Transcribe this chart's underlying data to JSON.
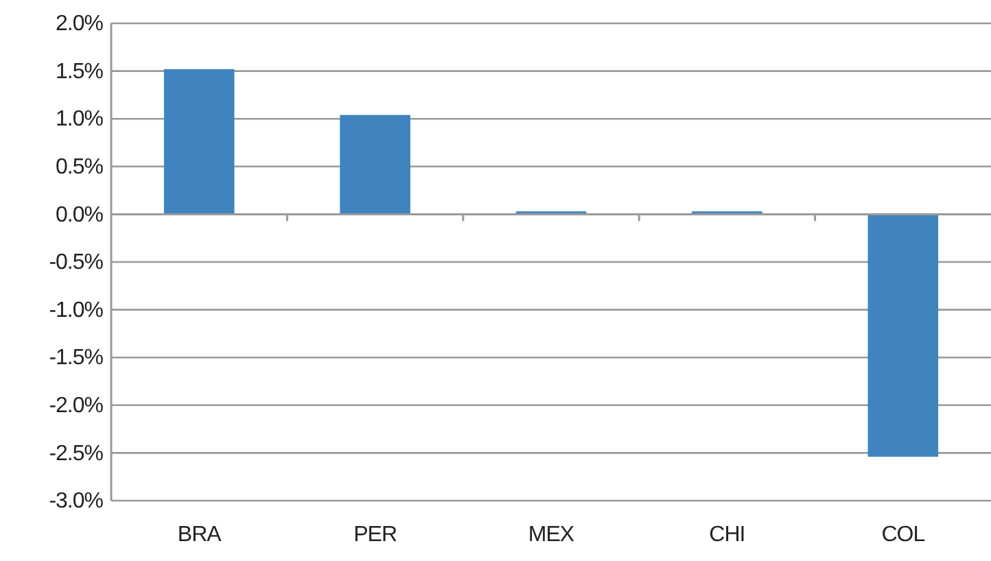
{
  "chart_data": {
    "type": "bar",
    "categories": [
      "BRA",
      "PER",
      "MEX",
      "CHI",
      "COL"
    ],
    "series": [
      {
        "color": "#3f84bf",
        "values": [
          1.52,
          1.04,
          0.03,
          0.03,
          -2.54
        ]
      }
    ],
    "ylim": [
      -3,
      2
    ],
    "yticks": [
      {
        "value": -3,
        "label": "-3.0%"
      },
      {
        "value": -2.5,
        "label": "-2.5%"
      },
      {
        "value": -2,
        "label": "-2.0%"
      },
      {
        "value": -1.5,
        "label": "-1.5%"
      },
      {
        "value": -1,
        "label": "-1.0%"
      },
      {
        "value": -0.5,
        "label": "-0.5%"
      },
      {
        "value": 0,
        "label": "0.0%"
      },
      {
        "value": 0.5,
        "label": "0.5%"
      },
      {
        "value": 1,
        "label": "1.0%"
      },
      {
        "value": 1.5,
        "label": "1.5%"
      },
      {
        "value": 2,
        "label": "2.0%"
      }
    ],
    "grid": "y"
  }
}
